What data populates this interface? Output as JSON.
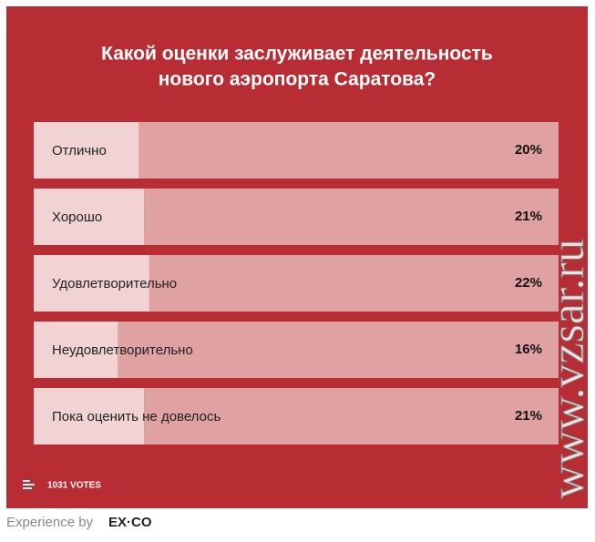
{
  "chart_data": {
    "type": "bar",
    "orientation": "horizontal",
    "title": [
      "Какой оценки заслуживает деятельность",
      "нового аэропорта Саратова?"
    ],
    "categories": [
      "Отлично",
      "Хорошо",
      "Удовлетворительно",
      "Неудовлетворительно",
      "Пока оценить не довелось"
    ],
    "values": [
      20,
      21,
      22,
      16,
      21
    ],
    "value_labels": [
      "20%",
      "21%",
      "22%",
      "16%",
      "21%"
    ],
    "xlim": [
      0,
      100
    ],
    "color": "#f2d3d3",
    "track_color": "#e0a1a3"
  },
  "votes": "1031 VOTES",
  "footer": {
    "text": "Experience by",
    "brand": "EX·CO"
  },
  "watermark": "www.vzsar.ru"
}
